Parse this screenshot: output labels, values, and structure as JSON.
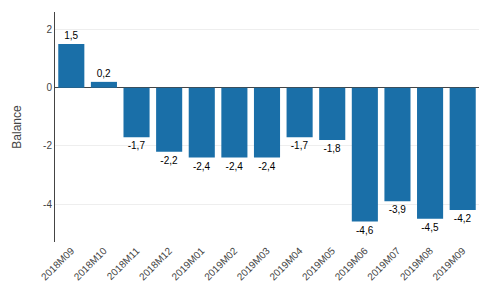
{
  "chart_data": {
    "type": "bar",
    "categories": [
      "2018M09",
      "2018M10",
      "2018M11",
      "2018M12",
      "2019M01",
      "2019M02",
      "2019M03",
      "2019M04",
      "2019M05",
      "2019M06",
      "2019M07",
      "2019M08",
      "2019M09"
    ],
    "values": [
      1.5,
      0.2,
      -1.7,
      -2.2,
      -2.4,
      -2.4,
      -2.4,
      -1.7,
      -1.8,
      -4.6,
      -3.9,
      -4.5,
      -4.2
    ],
    "value_labels": [
      "1,5",
      "0,2",
      "-1,7",
      "-2,2",
      "-2,4",
      "-2,4",
      "-2,4",
      "-1,7",
      "-1,8",
      "-4,6",
      "-3,9",
      "-4,5",
      "-4,2"
    ],
    "data_labels": true,
    "color": "#1a6fa8",
    "ylabel": "Balance",
    "ylim": [
      -5.3,
      2.6
    ],
    "yticks": [
      -4,
      -2,
      0,
      2
    ],
    "grid": true
  }
}
